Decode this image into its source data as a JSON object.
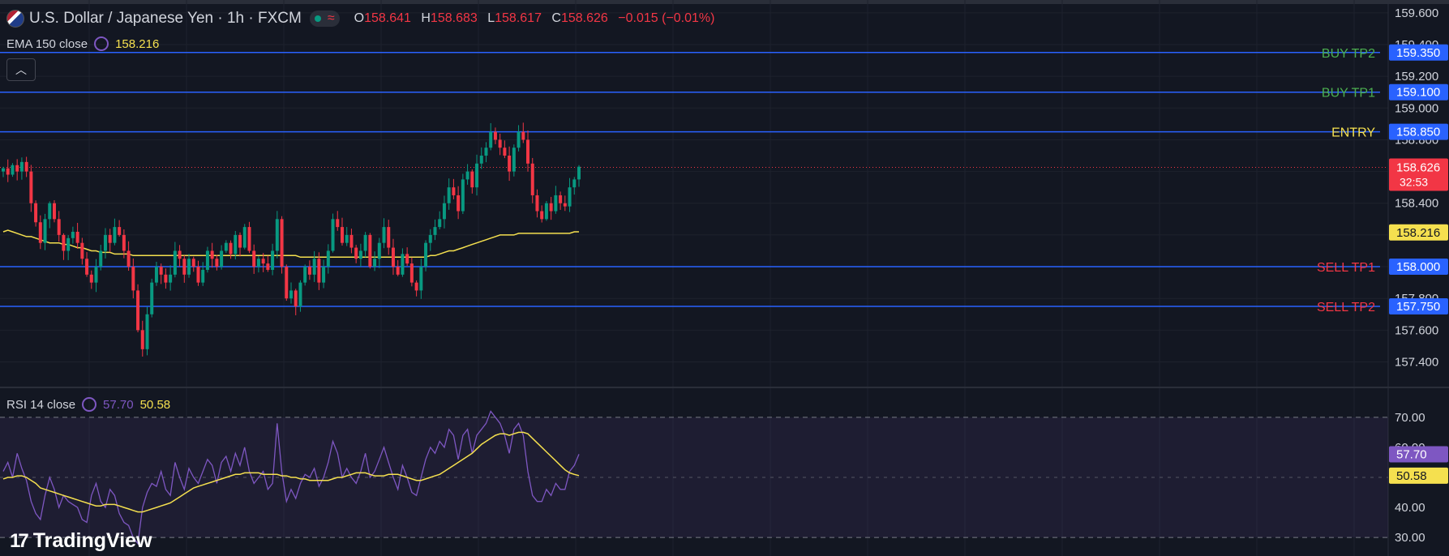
{
  "header": {
    "title": "U.S. Dollar / Japanese Yen · 1h · FXCM",
    "ohlc": {
      "o_label": "O",
      "o": "158.641",
      "h_label": "H",
      "h": "158.683",
      "l_label": "L",
      "l": "158.617",
      "c_label": "C",
      "c": "158.626",
      "change": "−0.015 (−0.01%)"
    }
  },
  "ema": {
    "label": "EMA 150 close",
    "value": "158.216"
  },
  "rsi": {
    "label": "RSI 14 close",
    "value": "57.70",
    "ma_value": "50.58"
  },
  "brand": {
    "name": "TradingView"
  },
  "colors": {
    "bg": "#131722",
    "up": "#089981",
    "down": "#f23645",
    "level_line": "#2962ff",
    "ema": "#f5e04f",
    "rsi": "#7e57c2",
    "rsi_ma": "#f5e04f",
    "buy": "#4caf50",
    "sell": "#f23645",
    "entry": "#f5e04f"
  },
  "chart_data": [
    {
      "type": "candlestick",
      "yticks": [
        "159.600",
        "159.400",
        "159.200",
        "159.000",
        "158.800",
        "158.600",
        "158.400",
        "158.200",
        "158.000",
        "157.800",
        "157.600",
        "157.400"
      ],
      "ylim": [
        157.28,
        159.64
      ],
      "levels": [
        {
          "name": "BUY TP2",
          "value": "159.350",
          "price": 159.35,
          "kind": "buy"
        },
        {
          "name": "BUY TP1",
          "value": "159.100",
          "price": 159.1,
          "kind": "buy"
        },
        {
          "name": "ENTRY",
          "value": "158.850",
          "price": 158.85,
          "kind": "entry"
        },
        {
          "name": "SELL TP1",
          "value": "158.000",
          "price": 158.0,
          "kind": "sell"
        },
        {
          "name": "SELL TP2",
          "value": "157.750",
          "price": 157.75,
          "kind": "sell"
        }
      ],
      "current_price": {
        "value": "158.626",
        "price": 158.626,
        "countdown": "32:53"
      },
      "ema_label": {
        "value": "158.216",
        "price": 158.216
      },
      "closes": [
        158.62,
        158.58,
        158.64,
        158.6,
        158.66,
        158.6,
        158.4,
        158.28,
        158.15,
        158.3,
        158.4,
        158.3,
        158.2,
        158.1,
        158.18,
        158.22,
        158.15,
        158.05,
        157.95,
        157.9,
        158.0,
        158.1,
        158.2,
        158.15,
        158.25,
        158.2,
        158.1,
        158.0,
        157.85,
        157.6,
        157.48,
        157.7,
        157.9,
        158.0,
        157.95,
        157.9,
        157.95,
        158.1,
        158.05,
        157.95,
        158.05,
        158.0,
        157.9,
        157.98,
        158.1,
        158.05,
        158.0,
        158.1,
        158.15,
        158.08,
        158.2,
        158.12,
        158.25,
        158.1,
        158.0,
        158.05,
        158.02,
        157.98,
        158.1,
        158.3,
        158.0,
        157.8,
        157.85,
        157.75,
        157.9,
        158.0,
        157.95,
        158.05,
        157.9,
        158.0,
        158.1,
        158.3,
        158.25,
        158.15,
        158.2,
        158.12,
        158.05,
        158.1,
        158.2,
        158.0,
        158.05,
        158.15,
        158.25,
        158.12,
        158.0,
        157.95,
        158.08,
        158.02,
        157.9,
        157.85,
        158.0,
        158.15,
        158.2,
        158.25,
        158.3,
        158.4,
        158.5,
        158.45,
        158.35,
        158.55,
        158.6,
        158.5,
        158.65,
        158.7,
        158.75,
        158.85,
        158.8,
        158.75,
        158.7,
        158.6,
        158.75,
        158.85,
        158.8,
        158.65,
        158.45,
        158.35,
        158.3,
        158.4,
        158.35,
        158.45,
        158.4,
        158.38,
        158.5,
        158.55,
        158.63
      ],
      "ema_series": [
        158.22,
        158.23,
        158.22,
        158.21,
        158.2,
        158.19,
        158.19,
        158.18,
        158.17,
        158.16,
        158.15,
        158.15,
        158.15,
        158.14,
        158.14,
        158.13,
        158.12,
        158.12,
        158.11,
        158.1,
        158.1,
        158.09,
        158.09,
        158.09,
        158.08,
        158.08,
        158.08,
        158.08,
        158.07,
        158.07,
        158.07,
        158.07,
        158.07,
        158.07,
        158.07,
        158.07,
        158.07,
        158.07,
        158.07,
        158.07,
        158.07,
        158.07,
        158.07,
        158.07,
        158.07,
        158.07,
        158.07,
        158.07,
        158.07,
        158.07,
        158.07,
        158.07,
        158.07,
        158.07,
        158.07,
        158.07,
        158.07,
        158.07,
        158.07,
        158.07,
        158.07,
        158.07,
        158.07,
        158.07,
        158.06,
        158.06,
        158.06,
        158.06,
        158.06,
        158.06,
        158.06,
        158.06,
        158.06,
        158.06,
        158.06,
        158.06,
        158.06,
        158.06,
        158.06,
        158.06,
        158.06,
        158.06,
        158.06,
        158.06,
        158.06,
        158.06,
        158.06,
        158.06,
        158.06,
        158.06,
        158.06,
        158.06,
        158.07,
        158.07,
        158.08,
        158.09,
        158.1,
        158.1,
        158.11,
        158.12,
        158.13,
        158.14,
        158.15,
        158.16,
        158.17,
        158.18,
        158.19,
        158.2,
        158.2,
        158.2,
        158.2,
        158.21,
        158.21,
        158.21,
        158.21,
        158.21,
        158.21,
        158.21,
        158.21,
        158.21,
        158.21,
        158.21,
        158.21,
        158.22,
        158.22
      ]
    },
    {
      "type": "line",
      "title": "RSI 14 close",
      "yticks": [
        "70.00",
        "60.00",
        "50.00",
        "40.00",
        "30.00"
      ],
      "ylim": [
        26,
        74
      ],
      "bands": [
        70,
        30
      ],
      "midline": 50,
      "series": [
        {
          "name": "RSI",
          "value_label": "57.70",
          "values": [
            52,
            55,
            50,
            58,
            53,
            49,
            42,
            38,
            36,
            44,
            50,
            46,
            40,
            44,
            42,
            41,
            40,
            36,
            35,
            44,
            48,
            42,
            40,
            46,
            44,
            38,
            35,
            34,
            30,
            28,
            40,
            45,
            48,
            47,
            52,
            46,
            44,
            55,
            50,
            46,
            53,
            50,
            48,
            52,
            56,
            54,
            48,
            55,
            57,
            52,
            58,
            54,
            60,
            52,
            48,
            50,
            52,
            46,
            48,
            68,
            52,
            42,
            46,
            43,
            48,
            51,
            50,
            53,
            47,
            50,
            55,
            62,
            58,
            50,
            53,
            50,
            48,
            52,
            58,
            50,
            52,
            56,
            60,
            55,
            50,
            46,
            54,
            50,
            45,
            44,
            50,
            56,
            60,
            58,
            62,
            60,
            66,
            64,
            56,
            64,
            66,
            58,
            64,
            66,
            68,
            72,
            70,
            68,
            64,
            58,
            66,
            68,
            64,
            52,
            44,
            42,
            42,
            46,
            44,
            48,
            46,
            46,
            52,
            54,
            57.7
          ]
        },
        {
          "name": "MA",
          "value_label": "50.58",
          "values": [
            49.5,
            50,
            50,
            50.5,
            50.5,
            50,
            49,
            48,
            46.5,
            46,
            45.5,
            45,
            44.5,
            44,
            43.5,
            43,
            42.5,
            42,
            41.5,
            41,
            40.5,
            40.5,
            41,
            41,
            41,
            40.5,
            40,
            39.5,
            39,
            38.5,
            38.5,
            39,
            39.5,
            40,
            40.5,
            41,
            41.5,
            42.5,
            43.5,
            44.5,
            45.5,
            46.5,
            47,
            47.5,
            48,
            48.5,
            49,
            49.5,
            50,
            50.5,
            51,
            51,
            51.5,
            51.5,
            51.5,
            51.5,
            51,
            51,
            51,
            51,
            50.5,
            50.5,
            50,
            50,
            49.5,
            49.5,
            49,
            49,
            49,
            49,
            49,
            49.5,
            50,
            50,
            50.5,
            51,
            51.5,
            51.5,
            51.5,
            51,
            50.5,
            50.5,
            50.5,
            51,
            51,
            51,
            50.5,
            50,
            49.5,
            49,
            49,
            49.5,
            50,
            50.5,
            51,
            52,
            53,
            54,
            55,
            56,
            57,
            58,
            59.5,
            61,
            62,
            63,
            64,
            64.5,
            64.5,
            64,
            64.5,
            65,
            65,
            64.5,
            63,
            61.5,
            60,
            58.5,
            57,
            55.5,
            54,
            52.5,
            51.5,
            51,
            50.58
          ]
        }
      ]
    }
  ]
}
